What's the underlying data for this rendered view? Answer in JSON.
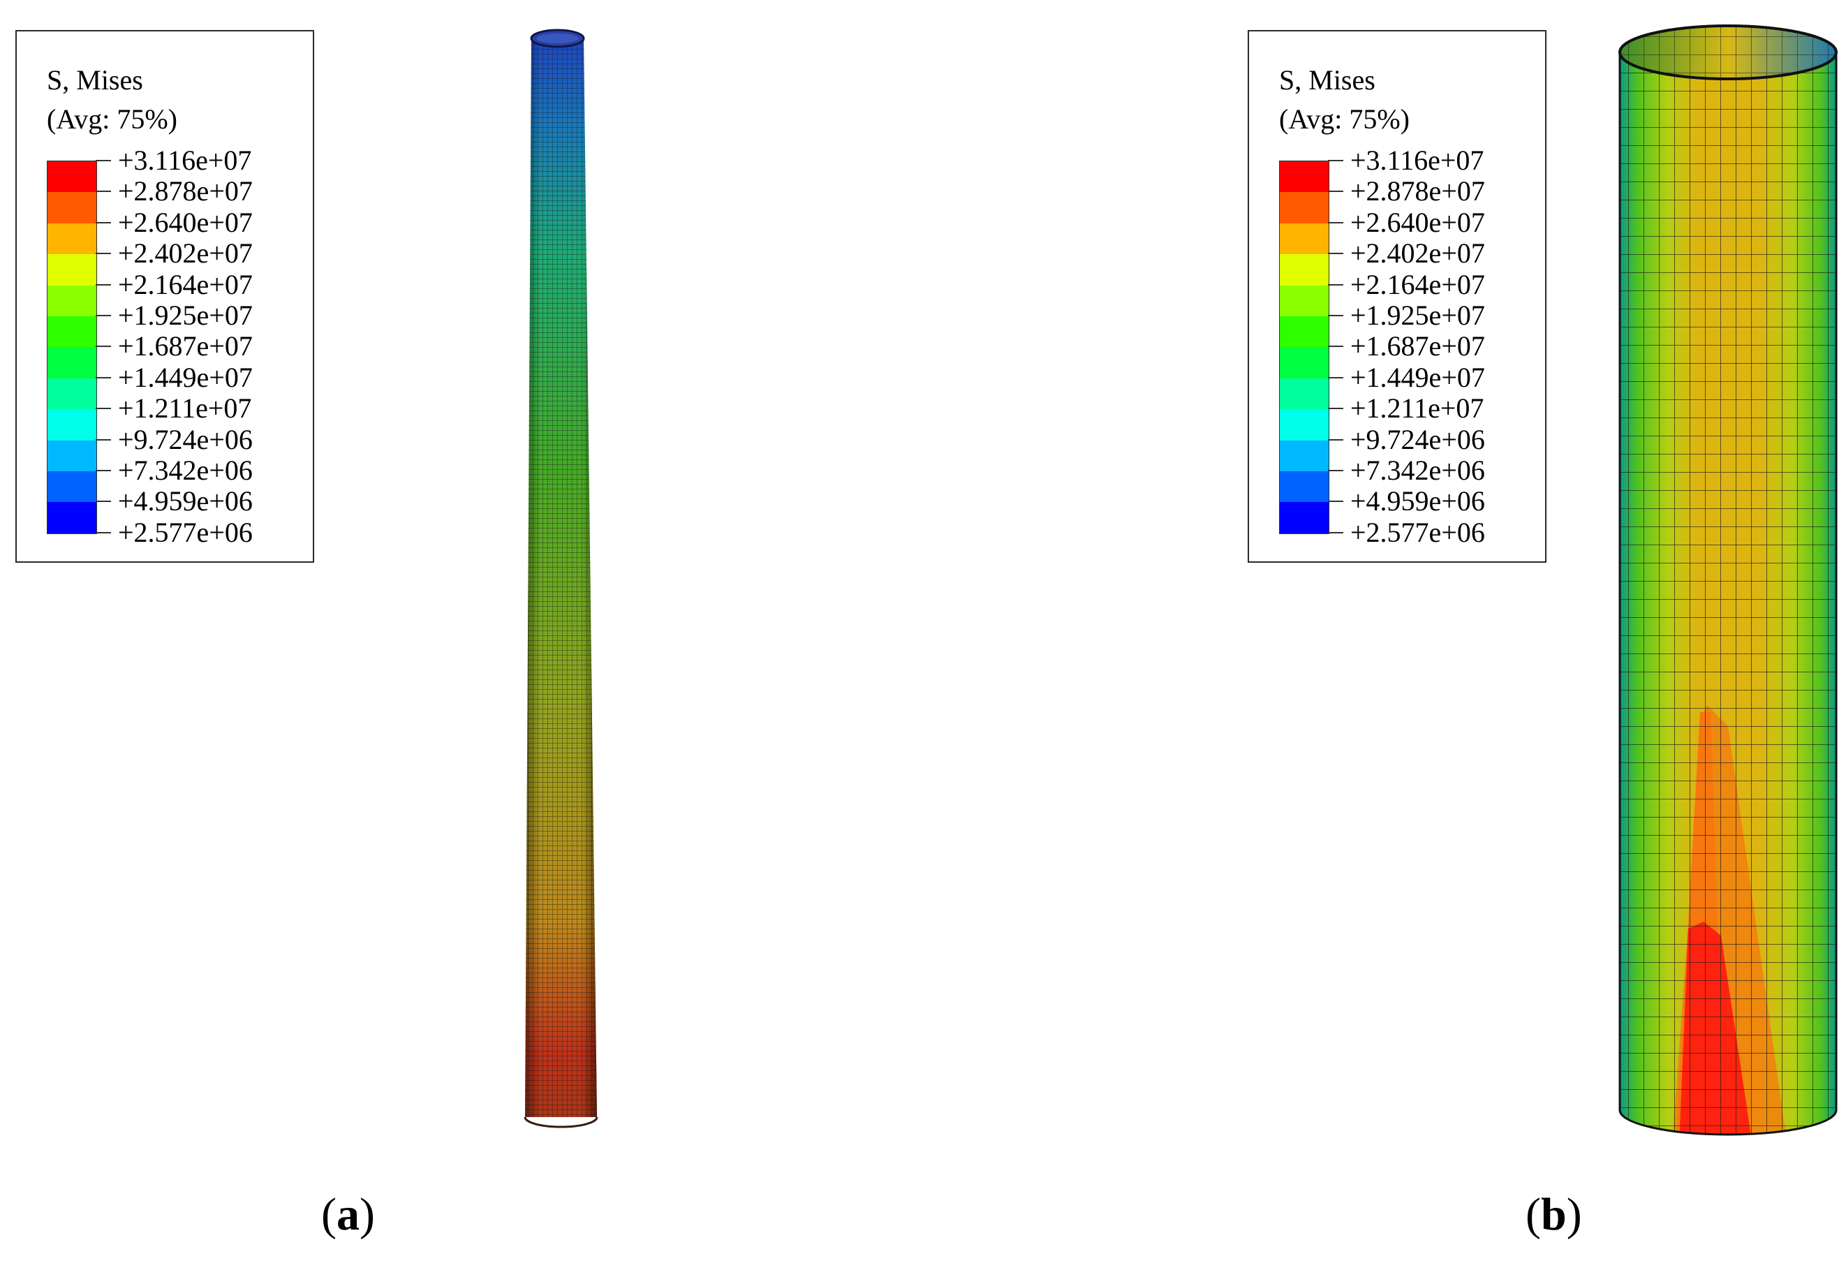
{
  "legend": {
    "title": "S, Mises",
    "subtitle": "(Avg: 75%)",
    "values": [
      "+3.116e+07",
      "+2.878e+07",
      "+2.640e+07",
      "+2.402e+07",
      "+2.164e+07",
      "+1.925e+07",
      "+1.687e+07",
      "+1.449e+07",
      "+1.211e+07",
      "+9.724e+06",
      "+7.342e+06",
      "+4.959e+06",
      "+2.577e+06"
    ],
    "colors": [
      "#ff0000",
      "#ff5a00",
      "#ffb400",
      "#e0ff00",
      "#8cff00",
      "#2dff00",
      "#00ff40",
      "#00ff9c",
      "#00ffe8",
      "#00b8ff",
      "#0064ff",
      "#0000ff"
    ]
  },
  "panels": [
    {
      "label_open": "(",
      "label_letter": "a",
      "label_close": ")"
    },
    {
      "label_open": "(",
      "label_letter": "b",
      "label_close": ")"
    }
  ]
}
